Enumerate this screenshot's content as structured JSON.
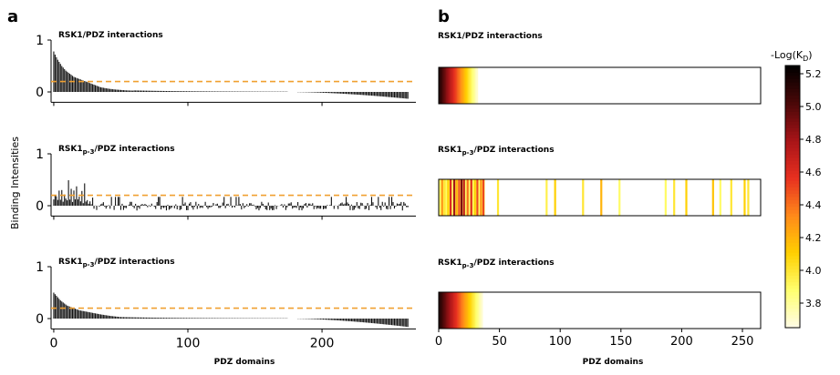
{
  "panels": {
    "a": "a",
    "b": "b"
  },
  "chart_data": [
    {
      "type": "bar",
      "panel": "a",
      "ylabel": "Binding Intensities",
      "xlabel": "PDZ domains",
      "xlim": [
        -2,
        270
      ],
      "ylim": [
        -0.2,
        1.0
      ],
      "xticks": [
        0,
        100,
        200
      ],
      "yticks": [
        0,
        1
      ],
      "threshold": 0.2,
      "threshold_color": "#f0a030",
      "rows": [
        {
          "title": "RSK1/PDZ interactions",
          "title_main": "RSK1/PDZ interactions",
          "title_sub": "",
          "title_tail": "",
          "profile": "sorted",
          "values": [
            0.78,
            0.72,
            0.67,
            0.62,
            0.58,
            0.54,
            0.5,
            0.47,
            0.44,
            0.41,
            0.39,
            0.37,
            0.35,
            0.33,
            0.31,
            0.29,
            0.28,
            0.27,
            0.26,
            0.25,
            0.24,
            0.23,
            0.22,
            0.21,
            0.2,
            0.19,
            0.18,
            0.17,
            0.16,
            0.15,
            0.14,
            0.13,
            0.12,
            0.11,
            0.1,
            0.09,
            0.085,
            0.08,
            0.075,
            0.07,
            0.066,
            0.062,
            0.058,
            0.055,
            0.052,
            0.049,
            0.046,
            0.044,
            0.042,
            0.04,
            0.038,
            0.036,
            0.034,
            0.032,
            0.03,
            0.029,
            0.028,
            0.027,
            0.026,
            0.025
          ]
        },
        {
          "title": "RSK1p-3/PDZ interactions",
          "title_main": "RSK1",
          "title_sub": "p-3",
          "title_tail": "/PDZ interactions",
          "profile": "scattered",
          "values": [
            0.2,
            0.25,
            0.22,
            0.18,
            0.3,
            0.15,
            0.28,
            0.12,
            0.35,
            0.2,
            0.1,
            0.45,
            0.18,
            0.38,
            0.08,
            0.42,
            0.15,
            0.5,
            0.12,
            0.28,
            0.1,
            0.35,
            0.05,
            0.48,
            0.1,
            0.18,
            0.06,
            0.12,
            0.04,
            0.22
          ]
        },
        {
          "title": "RSK1p-3/PDZ interactions",
          "title_main": "RSK1",
          "title_sub": "p-3",
          "title_tail": "/PDZ interactions",
          "profile": "sorted",
          "values": [
            0.5,
            0.47,
            0.44,
            0.41,
            0.38,
            0.35,
            0.33,
            0.31,
            0.29,
            0.27,
            0.25,
            0.24,
            0.23,
            0.22,
            0.21,
            0.2,
            0.19,
            0.18,
            0.17,
            0.16,
            0.155,
            0.15,
            0.145,
            0.14,
            0.135,
            0.13,
            0.125,
            0.12,
            0.115,
            0.11,
            0.105,
            0.1,
            0.095,
            0.09,
            0.085,
            0.08,
            0.076,
            0.072,
            0.068,
            0.064,
            0.06,
            0.056,
            0.052,
            0.049,
            0.046,
            0.043,
            0.04,
            0.037,
            0.034,
            0.031
          ]
        }
      ]
    },
    {
      "type": "heatmap",
      "panel": "b",
      "xlabel": "PDZ domains",
      "xlim": [
        0,
        265
      ],
      "xticks": [
        0,
        50,
        100,
        150,
        200,
        250
      ],
      "rows": [
        {
          "title": "RSK1/PDZ interactions",
          "title_main": "RSK1/PDZ interactions",
          "title_sub": "",
          "title_tail": "",
          "kind": "gradient",
          "length": 32
        },
        {
          "title": "RSK1p-3/PDZ interactions",
          "title_main": "RSK1",
          "title_sub": "p-3",
          "title_tail": "/PDZ interactions",
          "kind": "stripes",
          "stripes": [
            {
              "x": 2,
              "v": 4.3
            },
            {
              "x": 4,
              "v": 4.0
            },
            {
              "x": 7,
              "v": 4.1
            },
            {
              "x": 9,
              "v": 4.6
            },
            {
              "x": 12,
              "v": 4.8
            },
            {
              "x": 14,
              "v": 4.2
            },
            {
              "x": 16,
              "v": 4.5
            },
            {
              "x": 18,
              "v": 4.9
            },
            {
              "x": 20,
              "v": 4.7
            },
            {
              "x": 23,
              "v": 4.4
            },
            {
              "x": 26,
              "v": 4.6
            },
            {
              "x": 29,
              "v": 4.1
            },
            {
              "x": 31,
              "v": 4.5
            },
            {
              "x": 34,
              "v": 4.3
            },
            {
              "x": 36,
              "v": 4.5
            },
            {
              "x": 48,
              "v": 4.0
            },
            {
              "x": 88,
              "v": 3.95
            },
            {
              "x": 95,
              "v": 4.1
            },
            {
              "x": 118,
              "v": 4.0
            },
            {
              "x": 133,
              "v": 4.2
            },
            {
              "x": 148,
              "v": 3.9
            },
            {
              "x": 186,
              "v": 3.9
            },
            {
              "x": 193,
              "v": 4.0
            },
            {
              "x": 203,
              "v": 4.1
            },
            {
              "x": 225,
              "v": 4.15
            },
            {
              "x": 231,
              "v": 3.9
            },
            {
              "x": 240,
              "v": 4.0
            },
            {
              "x": 251,
              "v": 4.1
            },
            {
              "x": 254,
              "v": 4.0
            }
          ]
        },
        {
          "title": "RSK1p-3/PDZ interactions",
          "title_main": "RSK1",
          "title_sub": "p-3",
          "title_tail": "/PDZ interactions",
          "kind": "gradient",
          "length": 36
        }
      ]
    },
    {
      "type": "colorbar",
      "label": "-Log(KD)",
      "label_main": "-Log(K",
      "label_sub": "D",
      "label_tail": ")",
      "min": 3.65,
      "max": 5.25,
      "ticks": [
        3.8,
        4.0,
        4.2,
        4.4,
        4.6,
        4.8,
        5.0,
        5.2
      ],
      "colormap": [
        "#fffbe8",
        "#ffff70",
        "#ffd000",
        "#ff8a1a",
        "#e83020",
        "#a81418",
        "#4a0808",
        "#000000"
      ]
    }
  ]
}
